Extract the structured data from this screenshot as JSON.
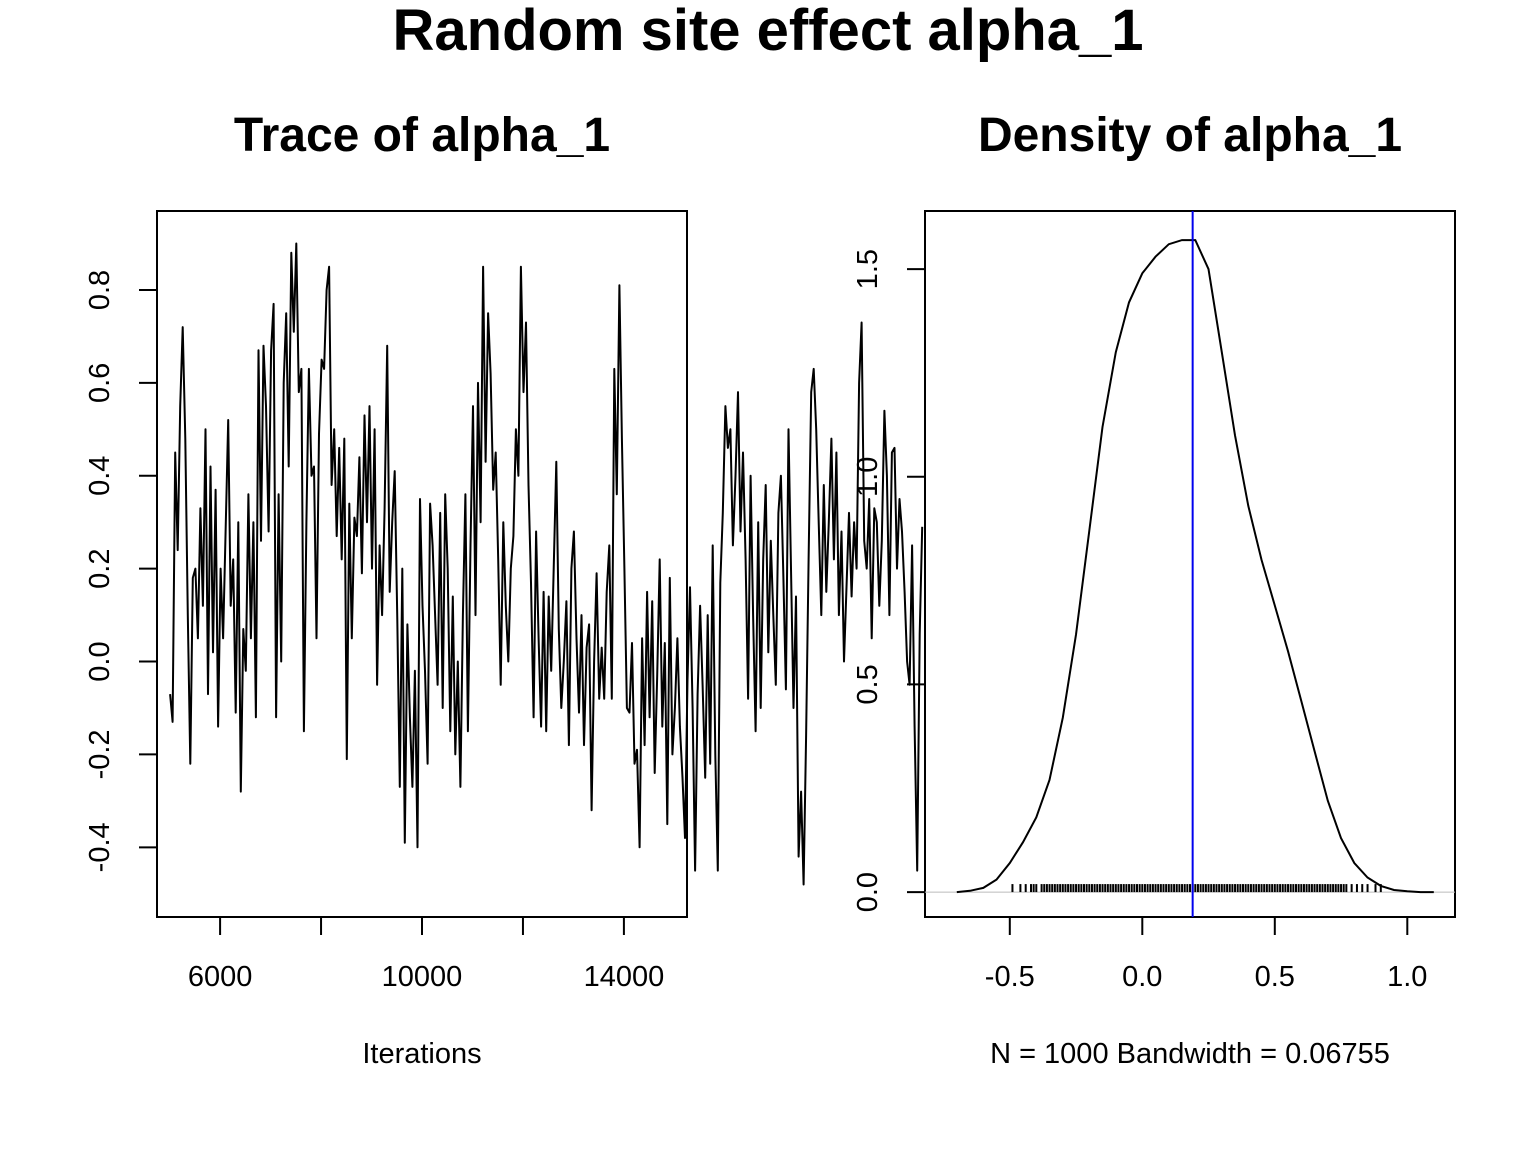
{
  "title": "Random site effect alpha_1",
  "chart_data": [
    {
      "type": "line",
      "title": "Trace of alpha_1",
      "xlabel": "Iterations",
      "ylabel": "",
      "xlim": [
        4750,
        15250
      ],
      "ylim": [
        -0.55,
        0.97
      ],
      "x_ticks": [
        6000,
        8000,
        10000,
        12000,
        14000
      ],
      "x_tick_labels": [
        "6000",
        "",
        "10000",
        "",
        "14000"
      ],
      "y_ticks": [
        -0.4,
        -0.2,
        0.0,
        0.2,
        0.4,
        0.6,
        0.8
      ],
      "y_tick_labels": [
        "-0.4",
        "-0.2",
        "0.0",
        "0.2",
        "0.4",
        "0.6",
        "0.8"
      ],
      "grid": false,
      "series": [
        {
          "x_start": 5010,
          "x_step": 50,
          "values": [
            -0.07,
            -0.13,
            0.45,
            0.24,
            0.55,
            0.72,
            0.48,
            0.1,
            -0.22,
            0.18,
            0.2,
            0.05,
            0.33,
            0.12,
            0.5,
            -0.07,
            0.42,
            0.02,
            0.37,
            -0.14,
            0.2,
            0.05,
            0.28,
            0.52,
            0.12,
            0.22,
            -0.11,
            0.3,
            -0.28,
            0.07,
            -0.02,
            0.36,
            0.05,
            0.3,
            -0.12,
            0.67,
            0.26,
            0.68,
            0.55,
            0.28,
            0.67,
            0.77,
            -0.12,
            0.36,
            0.0,
            0.6,
            0.75,
            0.42,
            0.88,
            0.71,
            0.9,
            0.58,
            0.63,
            -0.15,
            0.3,
            0.63,
            0.4,
            0.42,
            0.05,
            0.49,
            0.65,
            0.63,
            0.8,
            0.85,
            0.38,
            0.5,
            0.27,
            0.46,
            0.22,
            0.48,
            -0.21,
            0.34,
            0.05,
            0.31,
            0.27,
            0.44,
            0.19,
            0.53,
            0.3,
            0.55,
            0.2,
            0.5,
            -0.05,
            0.25,
            0.1,
            0.33,
            0.68,
            0.15,
            0.3,
            0.41,
            0.09,
            -0.27,
            0.2,
            -0.39,
            0.08,
            -0.12,
            -0.27,
            -0.02,
            -0.4,
            0.35,
            0.12,
            -0.02,
            -0.22,
            0.34,
            0.25,
            0.1,
            -0.05,
            0.32,
            -0.1,
            0.36,
            0.2,
            -0.15,
            0.14,
            -0.2,
            0.0,
            -0.27,
            0.1,
            0.36,
            -0.15,
            0.25,
            0.55,
            0.1,
            0.6,
            0.3,
            0.85,
            0.43,
            0.75,
            0.62,
            0.37,
            0.45,
            0.22,
            -0.05,
            0.3,
            0.12,
            0.0,
            0.2,
            0.27,
            0.5,
            0.4,
            0.85,
            0.58,
            0.73,
            0.38,
            0.17,
            -0.12,
            0.28,
            0.05,
            -0.14,
            0.15,
            -0.15,
            0.14,
            -0.02,
            0.2,
            0.43,
            0.07,
            -0.1,
            0.0,
            0.13,
            -0.18,
            0.2,
            0.28,
            0.05,
            -0.11,
            0.1,
            -0.18,
            0.03,
            0.08,
            -0.32,
            0.0,
            0.19,
            -0.08,
            0.03,
            -0.08,
            0.15,
            0.25,
            -0.08,
            0.63,
            0.36,
            0.81,
            0.48,
            0.2,
            -0.1,
            -0.11,
            0.04,
            -0.22,
            -0.19,
            -0.4,
            0.05,
            -0.18,
            0.15,
            -0.12,
            0.13,
            -0.24,
            -0.03,
            0.22,
            -0.14,
            0.04,
            -0.35,
            0.18,
            -0.2,
            -0.1,
            0.05,
            -0.14,
            -0.25,
            -0.38,
            -0.04,
            0.16,
            -0.1,
            -0.45,
            -0.07,
            0.12,
            -0.05,
            -0.25,
            0.1,
            -0.22,
            0.25,
            -0.2,
            -0.45,
            0.17,
            0.32,
            0.55,
            0.46,
            0.5,
            0.25,
            0.4,
            0.58,
            0.28,
            0.45,
            0.22,
            -0.08,
            0.4,
            0.1,
            -0.15,
            0.3,
            -0.1,
            0.22,
            0.38,
            0.02,
            0.26,
            0.1,
            -0.05,
            0.32,
            0.4,
            0.18,
            -0.06,
            0.5,
            0.2,
            -0.1,
            0.14,
            -0.42,
            -0.28,
            -0.48,
            -0.16,
            0.22,
            0.58,
            0.63,
            0.5,
            0.3,
            0.1,
            0.38,
            0.15,
            0.3,
            0.48,
            0.22,
            0.45,
            0.1,
            0.28,
            0.0,
            0.16,
            0.32,
            0.14,
            0.3,
            0.2,
            0.6,
            0.73,
            0.26,
            0.2,
            0.35,
            0.05,
            0.33,
            0.3,
            0.12,
            0.26,
            0.54,
            0.4,
            0.1,
            0.45,
            0.46,
            0.2,
            0.35,
            0.28,
            0.15,
            0.0,
            -0.05,
            0.25,
            -0.14,
            -0.45,
            0.06,
            0.29
          ]
        }
      ]
    },
    {
      "type": "line",
      "title": "Density of alpha_1",
      "xlabel": "N = 1000   Bandwidth = 0.06755",
      "ylabel": "",
      "xlim": [
        -0.82,
        1.18
      ],
      "ylim": [
        -0.06,
        1.64
      ],
      "x_ticks": [
        -0.5,
        0.0,
        0.5,
        1.0
      ],
      "x_tick_labels": [
        "-0.5",
        "0.0",
        "0.5",
        "1.0"
      ],
      "y_ticks": [
        0.0,
        0.5,
        1.0,
        1.5
      ],
      "y_tick_labels": [
        "0.0",
        "0.5",
        "1.0",
        "1.5"
      ],
      "grid": false,
      "mean_line": {
        "x": 0.19,
        "color": "#0000ee"
      },
      "series": [
        {
          "x": [
            -0.7,
            -0.65,
            -0.6,
            -0.55,
            -0.5,
            -0.45,
            -0.4,
            -0.35,
            -0.3,
            -0.25,
            -0.2,
            -0.15,
            -0.1,
            -0.05,
            0.0,
            0.05,
            0.1,
            0.15,
            0.2,
            0.25,
            0.3,
            0.35,
            0.4,
            0.45,
            0.5,
            0.55,
            0.6,
            0.65,
            0.7,
            0.75,
            0.8,
            0.85,
            0.9,
            0.95,
            1.0,
            1.05,
            1.1
          ],
          "y": [
            0.0,
            0.003,
            0.01,
            0.03,
            0.07,
            0.12,
            0.18,
            0.27,
            0.42,
            0.62,
            0.87,
            1.12,
            1.3,
            1.42,
            1.49,
            1.53,
            1.56,
            1.57,
            1.57,
            1.5,
            1.3,
            1.1,
            0.93,
            0.8,
            0.69,
            0.58,
            0.46,
            0.34,
            0.22,
            0.13,
            0.07,
            0.035,
            0.015,
            0.005,
            0.002,
            0.0,
            0.0
          ]
        }
      ],
      "rug": [
        -0.49,
        -0.46,
        -0.44,
        -0.42,
        -0.41,
        -0.4,
        -0.38,
        -0.37,
        -0.36,
        -0.35,
        -0.34,
        -0.33,
        -0.32,
        -0.31,
        -0.3,
        -0.29,
        -0.28,
        -0.27,
        -0.26,
        -0.25,
        -0.24,
        -0.23,
        -0.22,
        -0.21,
        -0.2,
        -0.19,
        -0.18,
        -0.17,
        -0.16,
        -0.15,
        -0.14,
        -0.13,
        -0.12,
        -0.11,
        -0.1,
        -0.09,
        -0.08,
        -0.07,
        -0.06,
        -0.05,
        -0.04,
        -0.03,
        -0.02,
        -0.01,
        0.0,
        0.01,
        0.02,
        0.03,
        0.04,
        0.05,
        0.06,
        0.07,
        0.08,
        0.09,
        0.1,
        0.11,
        0.12,
        0.13,
        0.14,
        0.15,
        0.16,
        0.17,
        0.18,
        0.19,
        0.2,
        0.21,
        0.22,
        0.23,
        0.24,
        0.25,
        0.26,
        0.27,
        0.28,
        0.29,
        0.3,
        0.31,
        0.32,
        0.33,
        0.34,
        0.35,
        0.36,
        0.37,
        0.38,
        0.39,
        0.4,
        0.41,
        0.42,
        0.43,
        0.44,
        0.45,
        0.46,
        0.47,
        0.48,
        0.49,
        0.5,
        0.51,
        0.52,
        0.53,
        0.54,
        0.55,
        0.56,
        0.57,
        0.58,
        0.59,
        0.6,
        0.61,
        0.62,
        0.63,
        0.64,
        0.65,
        0.66,
        0.67,
        0.68,
        0.69,
        0.7,
        0.71,
        0.72,
        0.73,
        0.74,
        0.75,
        0.76,
        0.77,
        0.79,
        0.81,
        0.83,
        0.85,
        0.88,
        0.9
      ]
    }
  ]
}
